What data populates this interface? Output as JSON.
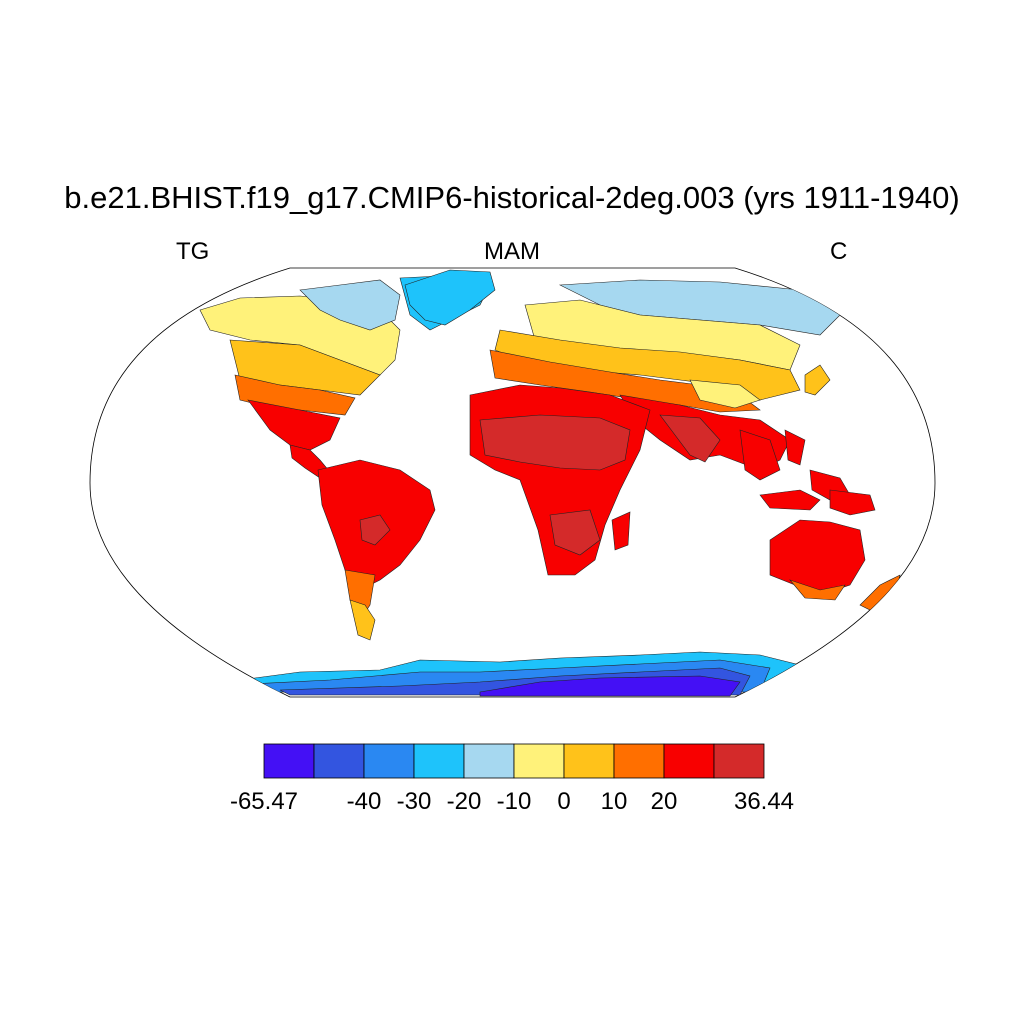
{
  "title": "b.e21.BHIST.f19_g17.CMIP6-historical-2deg.003 (yrs 1911-1940)",
  "subtitle_left": "TG",
  "subtitle_center": "MAM",
  "subtitle_right": "C",
  "colorbar": {
    "colors": [
      "#4410f5",
      "#3355e0",
      "#2a88f2",
      "#1ec3fb",
      "#a6d8f0",
      "#fff27a",
      "#ffc21a",
      "#ff6f00",
      "#f80000",
      "#d42a2a"
    ],
    "labels": [
      "-65.47",
      "-40",
      "-30",
      "-20",
      "-10",
      "0",
      "10",
      "20",
      "36.44"
    ],
    "boundaries": [
      -65.47,
      -50,
      -40,
      -30,
      -20,
      -10,
      0,
      10,
      20,
      30,
      36.44
    ]
  },
  "map": {
    "projection": "Robinson",
    "ocean_color": "#ffffff",
    "outline_color": "#000000"
  }
}
